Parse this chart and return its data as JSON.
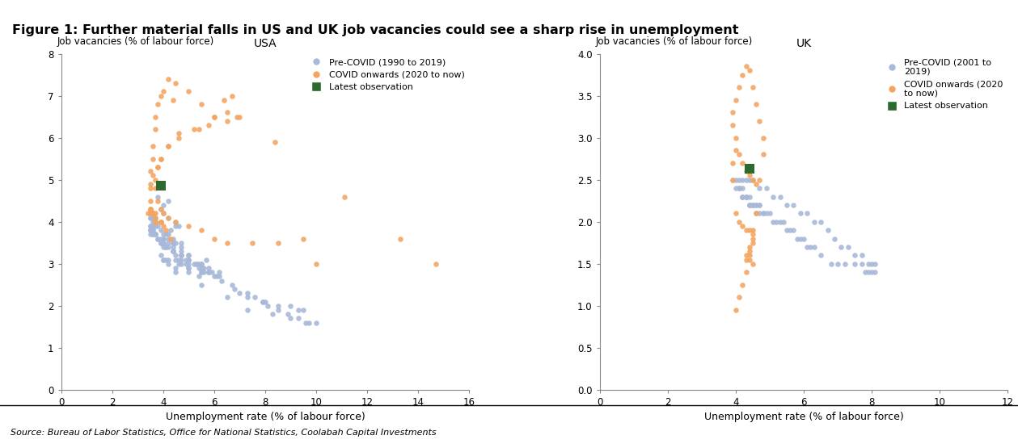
{
  "title": "Figure 1: Further material falls in US and UK job vacancies could see a sharp rise in unemployment",
  "source": "Source: Bureau of Labor Statistics, Office for National Statistics, Coolabah Capital Investments",
  "background_title": "#dce6f1",
  "usa_title": "USA",
  "uk_title": "UK",
  "usa_ylabel": "Job vacancies (% of labour force)",
  "uk_ylabel": "Job vacancies (% of labour force)",
  "usa_xlabel": "Unemployment rate (% of labour force)",
  "uk_xlabel": "Unemployment rate (% of labour force)",
  "usa_xlim": [
    0,
    16
  ],
  "usa_ylim": [
    0,
    8
  ],
  "uk_xlim": [
    0,
    12
  ],
  "uk_ylim": [
    0.0,
    4.0
  ],
  "usa_xticks": [
    0,
    2,
    4,
    6,
    8,
    10,
    12,
    14,
    16
  ],
  "usa_yticks": [
    0,
    1,
    2,
    3,
    4,
    5,
    6,
    7,
    8
  ],
  "uk_xticks": [
    0,
    2,
    4,
    6,
    8,
    10,
    12
  ],
  "uk_yticks": [
    0.0,
    0.5,
    1.0,
    1.5,
    2.0,
    2.5,
    3.0,
    3.5,
    4.0
  ],
  "color_precovid": "#a8b8d8",
  "color_covid": "#f4a460",
  "color_latest": "#2d6a2d",
  "legend_precovid_usa": "Pre-COVID (1990 to 2019)",
  "legend_covid_usa": "COVID onwards (2020 to now)",
  "legend_latest": "Latest observation",
  "legend_precovid_uk": "Pre-COVID (2001 to\n2019)",
  "legend_covid_uk": "COVID onwards (2020\nto now)",
  "dot_size": 22,
  "latest_size": 70,
  "usa_precovid_x": [
    3.8,
    4.2,
    4.0,
    3.9,
    4.0,
    4.2,
    4.5,
    4.6,
    4.5,
    4.3,
    4.2,
    4.1,
    4.0,
    3.9,
    4.0,
    4.2,
    4.5,
    4.7,
    4.4,
    4.0,
    3.8,
    3.9,
    4.1,
    4.4,
    4.7,
    5.0,
    5.3,
    5.6,
    5.7,
    5.5,
    5.2,
    4.9,
    4.5,
    4.2,
    4.0,
    4.2,
    4.5,
    5.0,
    5.4,
    6.0,
    5.8,
    5.4,
    5.0,
    4.6,
    4.5,
    4.4,
    4.2,
    4.0,
    3.9,
    4.0,
    4.4,
    4.7,
    5.0,
    5.5,
    5.8,
    5.5,
    5.0,
    4.7,
    4.7,
    5.0,
    5.4,
    5.8,
    6.2,
    6.1,
    5.6,
    5.0,
    4.6,
    4.1,
    3.9,
    4.0,
    4.5,
    5.5,
    6.5,
    7.3,
    8.3,
    9.0,
    9.6,
    10.0,
    9.7,
    9.3,
    8.9,
    8.5,
    8.1,
    7.9,
    7.6,
    7.3,
    6.7,
    6.2,
    5.8,
    5.5,
    5.3,
    5.0,
    4.9,
    4.7,
    4.4,
    4.1,
    3.9,
    3.8,
    3.7,
    3.6,
    3.5,
    3.6,
    3.7,
    3.7,
    3.6,
    3.5,
    3.6,
    3.5,
    3.5,
    3.6,
    3.7,
    4.4,
    5.5,
    7.0,
    8.0,
    9.0,
    9.5,
    9.3,
    8.5,
    7.9,
    7.3,
    6.8,
    6.3,
    5.9,
    5.5,
    5.0,
    4.7,
    4.4,
    4.2,
    4.0,
    3.9,
    3.8,
    3.7,
    3.6,
    3.5,
    3.5,
    3.6,
    3.7,
    3.7,
    3.6,
    3.5,
    3.5
  ],
  "usa_precovid_y": [
    4.6,
    4.5,
    4.4,
    4.3,
    4.2,
    4.1,
    4.0,
    3.9,
    3.9,
    3.8,
    3.7,
    3.7,
    3.6,
    3.6,
    3.5,
    3.5,
    3.5,
    3.5,
    3.6,
    3.6,
    3.6,
    3.5,
    3.4,
    3.3,
    3.2,
    3.1,
    3.0,
    2.9,
    3.1,
    3.0,
    3.0,
    3.0,
    3.1,
    3.1,
    3.1,
    3.0,
    2.9,
    2.8,
    2.7,
    2.7,
    2.8,
    2.9,
    3.0,
    3.1,
    3.2,
    3.3,
    3.4,
    3.4,
    3.5,
    3.5,
    3.4,
    3.3,
    3.2,
    2.9,
    2.8,
    2.8,
    2.9,
    3.0,
    3.1,
    3.1,
    3.0,
    2.9,
    2.8,
    2.7,
    2.8,
    2.9,
    3.0,
    3.1,
    3.2,
    3.1,
    2.8,
    2.5,
    2.2,
    1.9,
    1.8,
    1.7,
    1.6,
    1.6,
    1.6,
    1.7,
    1.8,
    1.9,
    2.0,
    2.1,
    2.2,
    2.3,
    2.5,
    2.7,
    2.8,
    2.9,
    3.0,
    3.1,
    3.1,
    3.2,
    3.3,
    3.4,
    3.5,
    3.6,
    3.7,
    3.7,
    3.8,
    3.8,
    3.7,
    3.7,
    3.7,
    3.8,
    3.8,
    3.9,
    3.9,
    3.9,
    3.9,
    3.5,
    2.8,
    2.3,
    2.1,
    2.0,
    1.9,
    1.9,
    2.0,
    2.1,
    2.2,
    2.4,
    2.6,
    2.8,
    3.0,
    3.2,
    3.4,
    3.5,
    3.6,
    3.7,
    3.8,
    3.9,
    4.0,
    4.0,
    4.1,
    4.1,
    4.1,
    4.1,
    4.0,
    3.9,
    3.8,
    3.7
  ],
  "usa_covid_x": [
    3.5,
    3.5,
    3.6,
    4.4,
    14.7,
    13.3,
    11.1,
    8.4,
    6.9,
    6.7,
    6.4,
    6.0,
    5.4,
    4.6,
    4.2,
    3.9,
    3.8,
    3.6,
    3.5,
    3.5,
    3.5,
    3.4,
    3.5,
    3.6,
    3.6,
    3.7,
    3.7,
    3.9,
    4.0,
    3.9,
    3.7,
    3.6,
    3.5,
    3.5,
    3.7,
    3.9,
    4.1,
    4.3
  ],
  "usa_covid_y": [
    4.9,
    5.2,
    5.5,
    6.9,
    3.0,
    3.6,
    4.6,
    5.9,
    6.5,
    7.0,
    6.9,
    6.5,
    6.2,
    6.0,
    5.8,
    5.5,
    5.3,
    5.1,
    4.8,
    4.5,
    4.3,
    4.2,
    4.3,
    4.2,
    4.2,
    4.0,
    4.0,
    4.0,
    3.9,
    4.0,
    4.1,
    4.2,
    4.2,
    4.3,
    4.2,
    4.0,
    3.8,
    3.6
  ],
  "usa_covid_high_x": [
    3.6,
    3.7,
    3.7,
    3.8,
    3.9,
    4.0,
    4.2,
    4.5,
    5.0,
    5.5,
    6.0,
    6.5,
    7.0,
    6.5,
    5.8,
    5.2,
    4.6,
    4.2,
    3.9,
    3.8,
    3.7,
    3.7,
    3.8,
    3.9,
    4.0,
    4.2,
    4.5,
    5.0,
    5.5,
    6.0,
    6.5,
    7.5,
    8.5,
    9.5,
    10.0
  ],
  "usa_covid_high_y": [
    5.8,
    6.2,
    6.5,
    6.8,
    7.0,
    7.1,
    7.4,
    7.3,
    7.1,
    6.8,
    6.5,
    6.4,
    6.5,
    6.6,
    6.3,
    6.2,
    6.1,
    5.8,
    5.5,
    5.3,
    5.0,
    4.8,
    4.5,
    4.3,
    4.2,
    4.1,
    4.0,
    3.9,
    3.8,
    3.6,
    3.5,
    3.5,
    3.5,
    3.6,
    3.0
  ],
  "usa_latest_x": [
    3.9
  ],
  "usa_latest_y": [
    4.85
  ],
  "uk_precovid_x": [
    3.9,
    4.0,
    4.0,
    4.1,
    4.1,
    4.2,
    4.2,
    4.3,
    4.3,
    4.4,
    4.4,
    4.5,
    4.5,
    4.6,
    4.6,
    4.7,
    4.7,
    4.8,
    4.9,
    5.0,
    5.1,
    5.2,
    5.3,
    5.4,
    5.5,
    5.6,
    5.7,
    5.8,
    5.9,
    6.0,
    6.1,
    6.2,
    6.3,
    6.5,
    6.8,
    7.0,
    7.2,
    7.5,
    7.7,
    7.8,
    7.9,
    8.0,
    8.1,
    8.1,
    8.0,
    7.9,
    7.7,
    7.5,
    7.3,
    7.1,
    6.9,
    6.7,
    6.5,
    6.3,
    6.1,
    5.9,
    5.7,
    5.5,
    5.3,
    5.1,
    4.9,
    4.7,
    4.5,
    4.4,
    4.3,
    4.2,
    4.1,
    4.1,
    4.2,
    4.2,
    4.3,
    4.3,
    4.4,
    4.4,
    4.5,
    4.5,
    4.6,
    4.7,
    4.8
  ],
  "uk_precovid_y": [
    2.5,
    2.5,
    2.4,
    2.4,
    2.4,
    2.3,
    2.3,
    2.3,
    2.3,
    2.3,
    2.2,
    2.2,
    2.2,
    2.2,
    2.2,
    2.2,
    2.2,
    2.1,
    2.1,
    2.1,
    2.0,
    2.0,
    2.0,
    2.0,
    1.9,
    1.9,
    1.9,
    1.8,
    1.8,
    1.8,
    1.7,
    1.7,
    1.7,
    1.6,
    1.5,
    1.5,
    1.5,
    1.5,
    1.5,
    1.4,
    1.4,
    1.4,
    1.4,
    1.5,
    1.5,
    1.5,
    1.6,
    1.6,
    1.7,
    1.7,
    1.8,
    1.9,
    2.0,
    2.0,
    2.1,
    2.1,
    2.2,
    2.2,
    2.3,
    2.3,
    2.4,
    2.4,
    2.5,
    2.5,
    2.5,
    2.5,
    2.5,
    2.4,
    2.4,
    2.3,
    2.3,
    2.3,
    2.2,
    2.2,
    2.2,
    2.2,
    2.1,
    2.1,
    2.1
  ],
  "uk_covid_x": [
    3.9,
    3.9,
    4.0,
    4.1,
    4.2,
    4.3,
    4.4,
    4.5,
    4.6,
    4.7,
    4.8,
    4.8,
    4.7,
    4.6,
    4.5,
    4.4,
    4.3,
    4.2,
    4.1,
    4.0,
    3.9,
    3.9,
    4.0,
    4.0,
    4.1,
    4.2,
    4.3,
    4.4,
    4.5,
    4.6
  ],
  "uk_covid_y": [
    2.5,
    2.7,
    0.95,
    1.1,
    1.25,
    1.4,
    1.6,
    1.8,
    2.1,
    2.5,
    2.8,
    3.0,
    3.2,
    3.4,
    3.6,
    3.8,
    3.85,
    3.75,
    3.6,
    3.45,
    3.3,
    3.15,
    3.0,
    2.85,
    2.8,
    2.7,
    2.6,
    2.55,
    2.5,
    2.45
  ],
  "uk_covid_extra_x": [
    4.0,
    4.1,
    4.2,
    4.3,
    4.4,
    4.5,
    4.5,
    4.5,
    4.4,
    4.4,
    4.3,
    4.3,
    4.4,
    4.5
  ],
  "uk_covid_extra_y": [
    2.1,
    2.0,
    1.95,
    1.9,
    1.9,
    1.9,
    1.85,
    1.75,
    1.7,
    1.65,
    1.6,
    1.55,
    1.55,
    1.5
  ],
  "uk_latest_x": [
    4.4
  ],
  "uk_latest_y": [
    2.63
  ]
}
